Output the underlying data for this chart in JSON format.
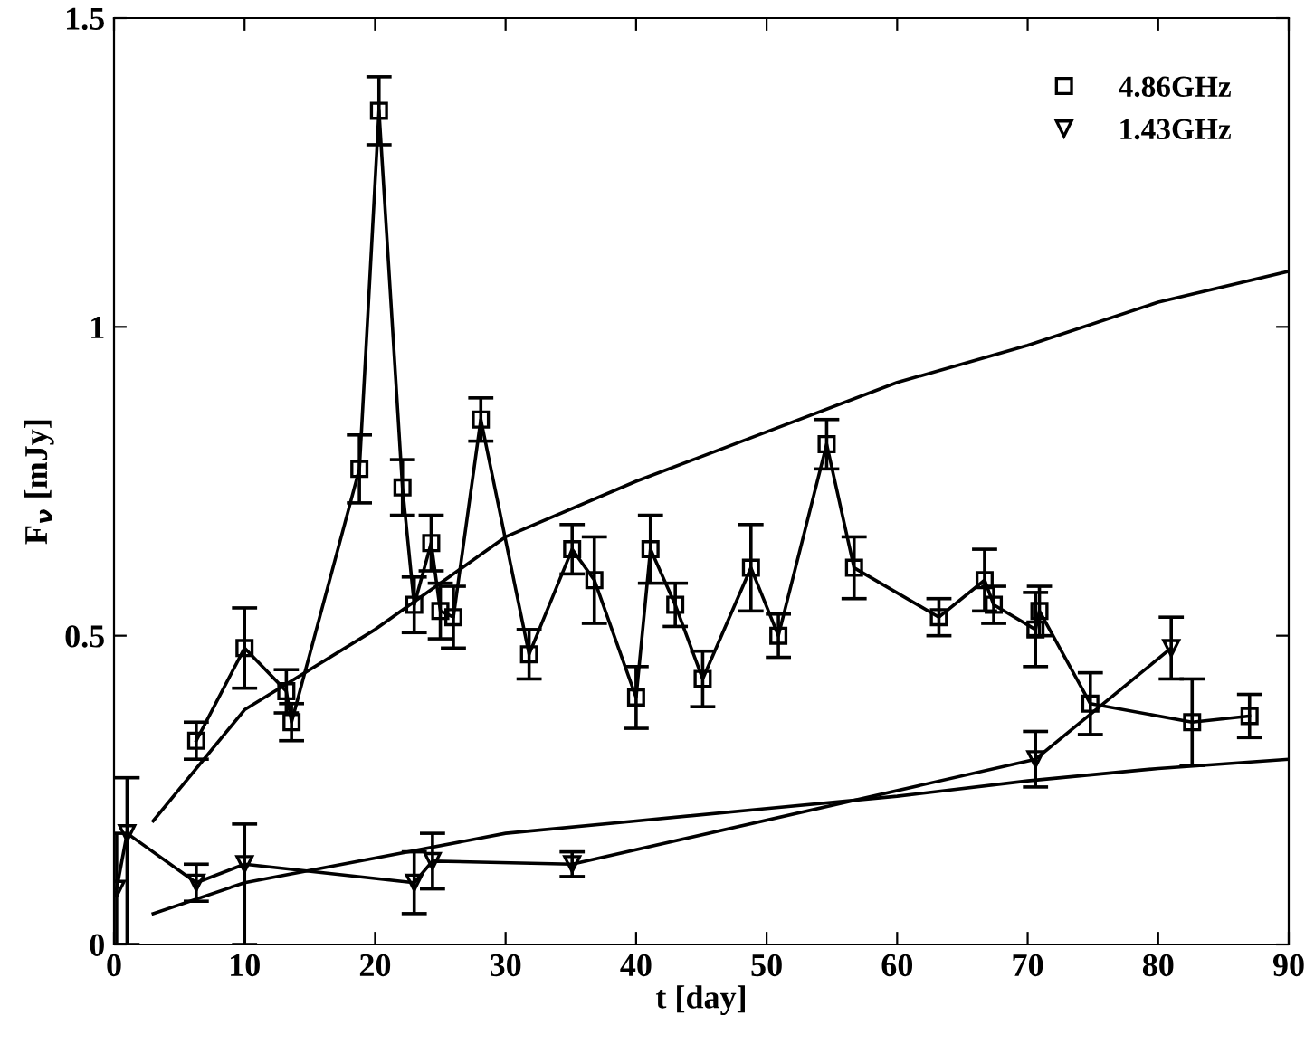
{
  "chart_data": {
    "type": "line",
    "xlabel": "t [day]",
    "ylabel": "F$_{ν}$ [mJy]",
    "xlim": [
      0,
      90
    ],
    "ylim": [
      0,
      1.5
    ],
    "xticks": [
      0,
      10,
      20,
      30,
      40,
      50,
      60,
      70,
      80,
      90
    ],
    "yticks": [
      0,
      {
        "value": 0.5,
        "label": "0.5"
      },
      1,
      {
        "value": 1.5,
        "label": "1.5"
      }
    ],
    "grid": false,
    "legend": "top right",
    "line_style": "solid",
    "series": [
      {
        "name": "4.86GHz",
        "color": "#000000",
        "marker": "square",
        "x": [
          6.3,
          10,
          13.2,
          13.6,
          18.8,
          20.3,
          22.1,
          23,
          24.3,
          25,
          26,
          28.1,
          31.8,
          35.1,
          36.8,
          40,
          41.1,
          43,
          45.1,
          48.8,
          50.9,
          54.6,
          56.7,
          63.2,
          66.7,
          67.4,
          70.6,
          70.9,
          74.8,
          82.6,
          87
        ],
        "values": [
          0.33,
          0.48,
          0.41,
          0.36,
          0.77,
          1.35,
          0.74,
          0.55,
          0.65,
          0.54,
          0.53,
          0.85,
          0.47,
          0.64,
          0.59,
          0.4,
          0.64,
          0.55,
          0.43,
          0.61,
          0.5,
          0.81,
          0.61,
          0.53,
          0.59,
          0.55,
          0.51,
          0.54,
          0.39,
          0.36,
          0.37
        ],
        "errors": [
          0.03,
          0.065,
          0.035,
          0.03,
          0.055,
          0.055,
          0.045,
          0.045,
          0.045,
          0.045,
          0.05,
          0.035,
          0.04,
          0.04,
          0.07,
          0.05,
          0.055,
          0.035,
          0.045,
          0.07,
          0.035,
          0.04,
          0.05,
          0.03,
          0.05,
          0.03,
          0.06,
          0.04,
          0.05,
          0.07,
          0.035
        ]
      },
      {
        "name": "1.43GHz",
        "color": "#000000",
        "marker": "triangle",
        "x": [
          0.2,
          1,
          6.3,
          10,
          23,
          24.4,
          35.1,
          70.6,
          81
        ],
        "values": [
          0.09,
          0.18,
          0.1,
          0.13,
          0.1,
          0.135,
          0.13,
          0.3,
          0.48
        ],
        "errors": [
          0.09,
          [
            0,
            0.27
          ],
          0.03,
          [
            0,
            0.195
          ],
          0.05,
          0.045,
          0.02,
          0.045,
          0.05
        ]
      },
      {
        "type": "line",
        "color": "#000000",
        "marker": "none",
        "x": [
          3,
          10,
          20,
          30,
          40,
          50,
          60,
          70,
          80,
          90
        ],
        "values": [
          0.2,
          0.38,
          0.51,
          0.66,
          0.75,
          0.83,
          0.91,
          0.97,
          1.04,
          1.09
        ]
      },
      {
        "type": "line",
        "color": "#000000",
        "marker": "none",
        "x": [
          3,
          10,
          20,
          30,
          40,
          50,
          60,
          70,
          80,
          90
        ],
        "values": [
          0.05,
          0.1,
          0.14,
          0.18,
          0.2,
          0.22,
          0.24,
          0.265,
          0.285,
          0.3
        ]
      }
    ]
  }
}
